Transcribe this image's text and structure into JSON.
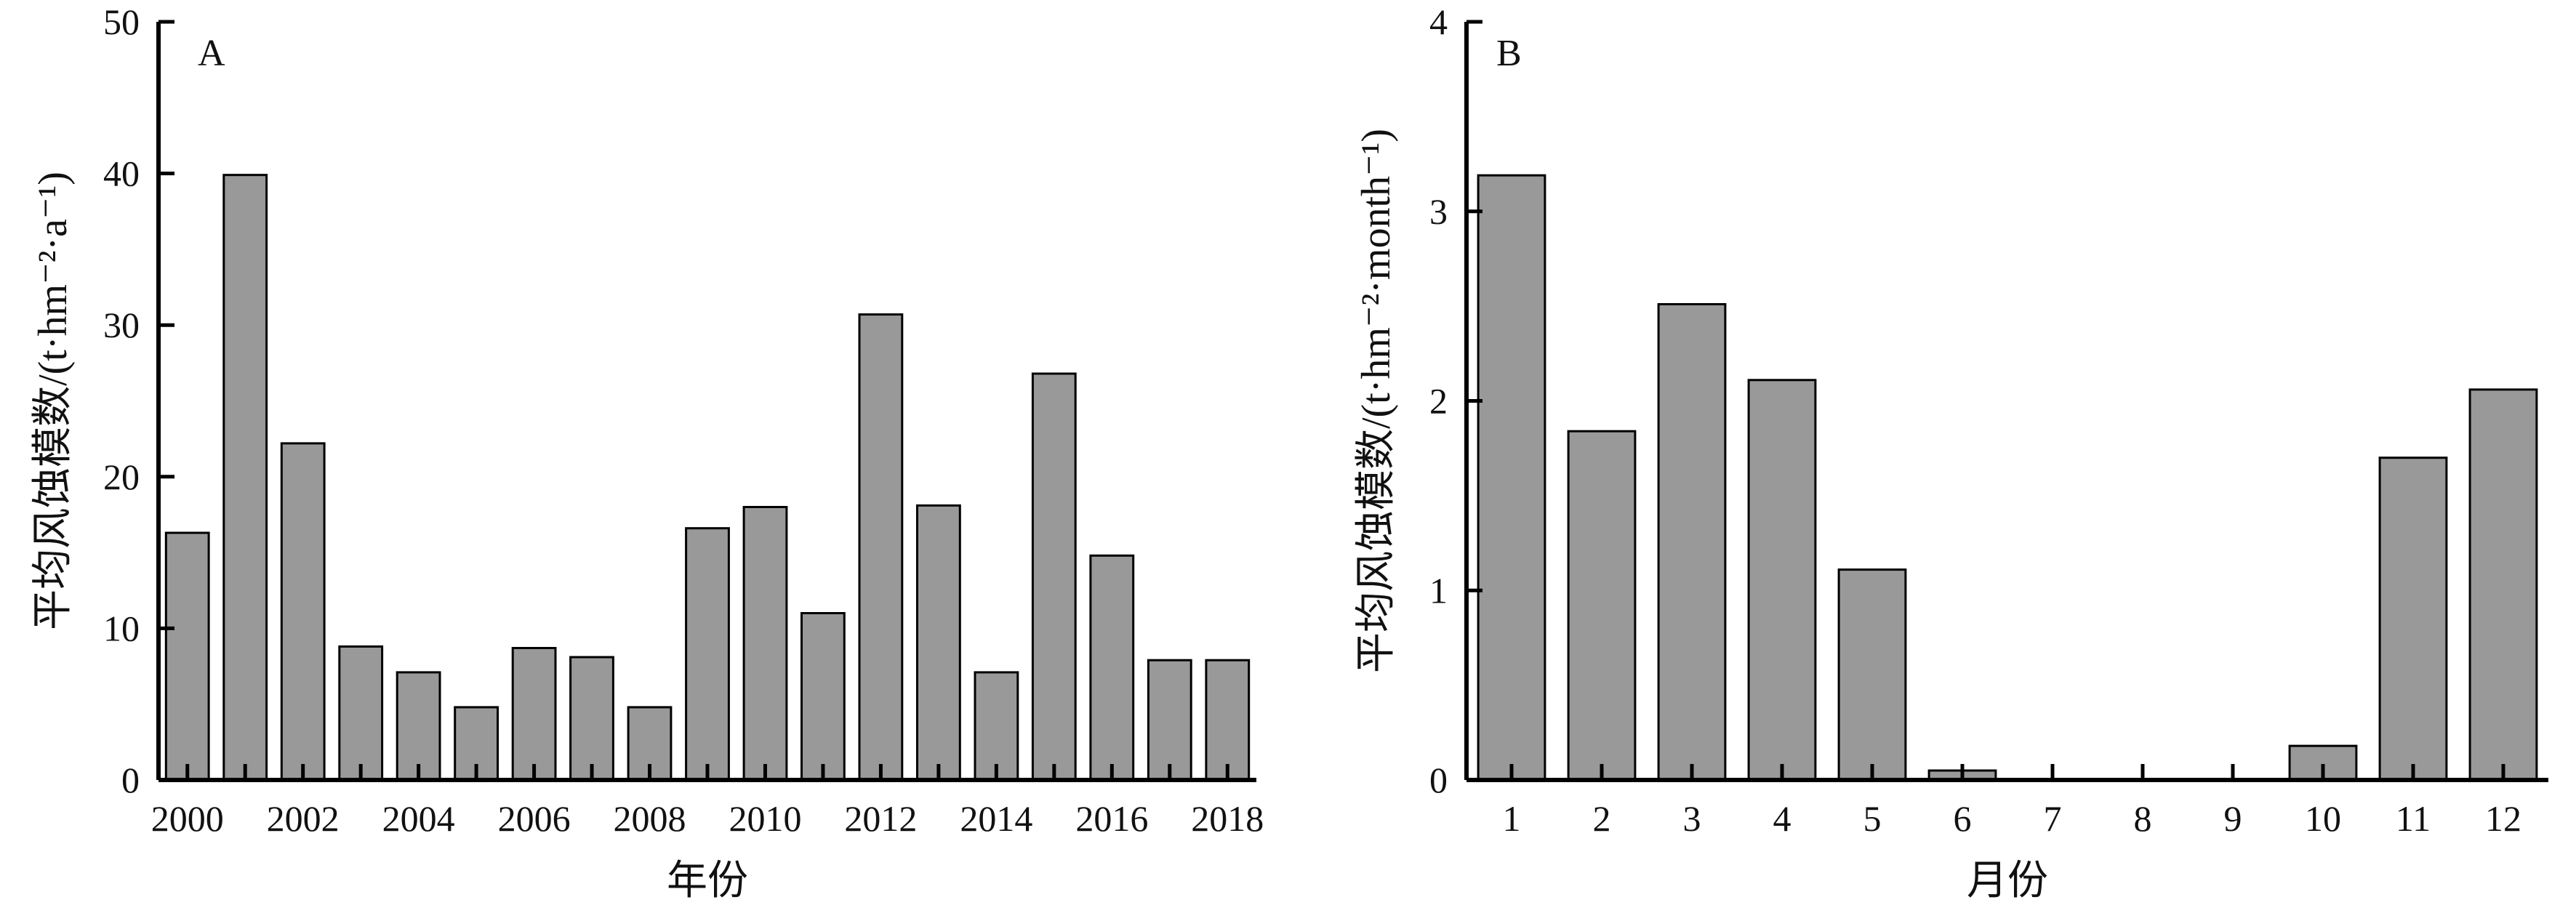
{
  "colors": {
    "bar_fill": "#999999",
    "bar_stroke": "#000000",
    "axis": "#000000"
  },
  "chart_data": [
    {
      "type": "bar",
      "panel_label": "A",
      "xlabel": "年份",
      "ylabel": "平均风蚀模数/(t·hm⁻²·a⁻¹)",
      "ylim": [
        0,
        50
      ],
      "yticks": [
        "0",
        "10",
        "20",
        "30",
        "40",
        "50"
      ],
      "categories": [
        "2000",
        "2001",
        "2002",
        "2003",
        "2004",
        "2005",
        "2006",
        "2007",
        "2008",
        "2009",
        "2010",
        "2011",
        "2012",
        "2013",
        "2014",
        "2015",
        "2016",
        "2017",
        "2018"
      ],
      "xtick_labels": [
        "2000",
        "",
        "2002",
        "",
        "2004",
        "",
        "2006",
        "",
        "2008",
        "",
        "2010",
        "",
        "2012",
        "",
        "2014",
        "",
        "2016",
        "",
        "2018"
      ],
      "values": [
        16.3,
        39.9,
        22.2,
        8.8,
        7.1,
        4.8,
        8.7,
        8.1,
        4.8,
        16.6,
        18.0,
        11.0,
        30.7,
        18.1,
        7.1,
        26.8,
        14.8,
        7.9,
        7.9
      ],
      "grid": false,
      "legend": "none"
    },
    {
      "type": "bar",
      "panel_label": "B",
      "xlabel": "月份",
      "ylabel": "平均风蚀模数/(t·hm⁻²·month⁻¹)",
      "ylim": [
        0,
        4
      ],
      "yticks": [
        "0",
        "1",
        "2",
        "3",
        "4"
      ],
      "categories": [
        "1",
        "2",
        "3",
        "4",
        "5",
        "6",
        "7",
        "8",
        "9",
        "10",
        "11",
        "12"
      ],
      "xtick_labels": [
        "1",
        "2",
        "3",
        "4",
        "5",
        "6",
        "7",
        "8",
        "9",
        "10",
        "11",
        "12"
      ],
      "values": [
        3.19,
        1.84,
        2.51,
        2.11,
        1.11,
        0.05,
        0,
        0,
        0,
        0.18,
        1.7,
        2.06
      ],
      "grid": false,
      "legend": "none"
    }
  ]
}
